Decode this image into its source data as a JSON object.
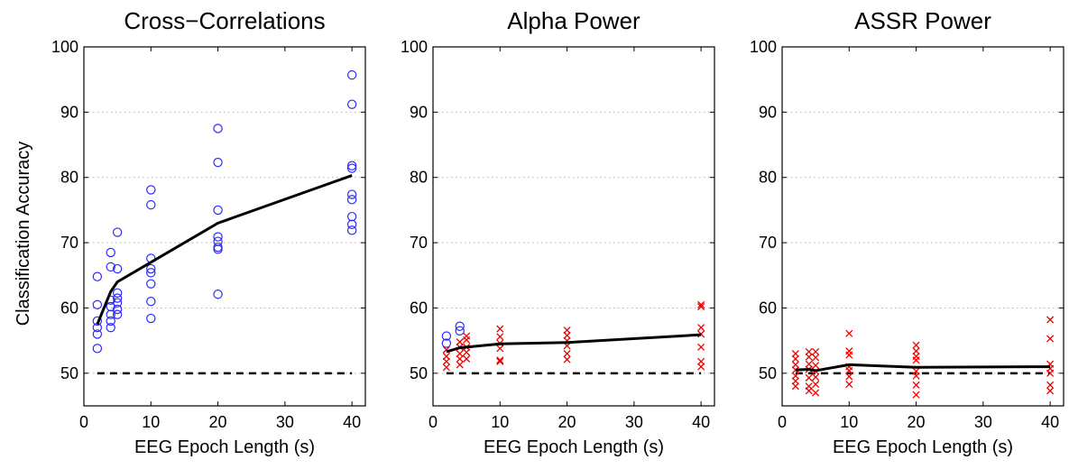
{
  "figure": {
    "ylabel": "Classification Accuracy"
  },
  "chart_data": [
    {
      "type": "scatter",
      "title": "Cross−Correlations",
      "xlabel": "EEG Epoch Length (s)",
      "ylabel": "Classification Accuracy",
      "xlim": [
        0,
        42
      ],
      "ylim": [
        45,
        100
      ],
      "xticks": [
        0,
        10,
        20,
        30,
        40
      ],
      "yticks": [
        50,
        60,
        70,
        80,
        90,
        100
      ],
      "grid": "horizontal dotted",
      "series": [
        {
          "marker": "circle",
          "color": "#2b2bff",
          "points": [
            [
              2,
              64.8
            ],
            [
              2,
              60.5
            ],
            [
              2,
              58.0
            ],
            [
              2,
              57.0
            ],
            [
              2,
              56.0
            ],
            [
              2,
              53.8
            ],
            [
              4,
              68.5
            ],
            [
              4,
              66.3
            ],
            [
              4,
              61.2
            ],
            [
              4,
              60.2
            ],
            [
              4,
              59.0
            ],
            [
              4,
              58.0
            ],
            [
              4,
              57.0
            ],
            [
              5,
              71.6
            ],
            [
              5,
              66.0
            ],
            [
              5,
              62.3
            ],
            [
              5,
              61.5
            ],
            [
              5,
              60.8
            ],
            [
              5,
              59.8
            ],
            [
              5,
              59.0
            ],
            [
              10,
              78.1
            ],
            [
              10,
              75.8
            ],
            [
              10,
              67.6
            ],
            [
              10,
              66.0
            ],
            [
              10,
              65.4
            ],
            [
              10,
              63.7
            ],
            [
              10,
              61.0
            ],
            [
              10,
              58.4
            ],
            [
              20,
              87.5
            ],
            [
              20,
              82.3
            ],
            [
              20,
              75.0
            ],
            [
              20,
              70.9
            ],
            [
              20,
              70.2
            ],
            [
              20,
              69.3
            ],
            [
              20,
              69.0
            ],
            [
              20,
              62.1
            ],
            [
              40,
              95.7
            ],
            [
              40,
              91.2
            ],
            [
              40,
              81.8
            ],
            [
              40,
              81.4
            ],
            [
              40,
              77.4
            ],
            [
              40,
              76.6
            ],
            [
              40,
              74.0
            ],
            [
              40,
              72.8
            ],
            [
              40,
              71.9
            ]
          ]
        }
      ],
      "mean_line": [
        [
          2,
          57.5
        ],
        [
          4,
          62.5
        ],
        [
          5,
          64.0
        ],
        [
          10,
          67.0
        ],
        [
          20,
          73.0
        ],
        [
          40,
          80.3
        ]
      ],
      "chance_level": 50
    },
    {
      "type": "scatter",
      "title": "Alpha Power",
      "xlabel": "EEG Epoch Length (s)",
      "xlim": [
        0,
        42
      ],
      "ylim": [
        45,
        100
      ],
      "xticks": [
        0,
        10,
        20,
        30,
        40
      ],
      "yticks": [
        50,
        60,
        70,
        80,
        90,
        100
      ],
      "grid": "horizontal dotted",
      "series": [
        {
          "marker": "circle",
          "color": "#2b2bff",
          "points": [
            [
              2,
              55.7
            ],
            [
              2,
              54.6
            ],
            [
              4,
              57.2
            ],
            [
              4,
              56.5
            ]
          ]
        },
        {
          "marker": "cross",
          "color": "#ee0000",
          "points": [
            [
              2,
              53.6
            ],
            [
              2,
              52.6
            ],
            [
              2,
              51.8
            ],
            [
              2,
              50.9
            ],
            [
              4,
              54.8
            ],
            [
              4,
              54.0
            ],
            [
              4,
              53.0
            ],
            [
              4,
              52.2
            ],
            [
              4,
              51.3
            ],
            [
              5,
              55.7
            ],
            [
              5,
              55.1
            ],
            [
              5,
              54.0
            ],
            [
              5,
              53.2
            ],
            [
              5,
              52.2
            ],
            [
              10,
              56.8
            ],
            [
              10,
              55.6
            ],
            [
              10,
              54.6
            ],
            [
              10,
              53.8
            ],
            [
              10,
              52.0
            ],
            [
              10,
              51.8
            ],
            [
              20,
              56.6
            ],
            [
              20,
              55.8
            ],
            [
              20,
              55.0
            ],
            [
              20,
              54.2
            ],
            [
              20,
              53.0
            ],
            [
              20,
              52.1
            ],
            [
              40,
              60.5
            ],
            [
              40,
              60.2
            ],
            [
              40,
              57.0
            ],
            [
              40,
              56.0
            ],
            [
              40,
              54.0
            ],
            [
              40,
              51.8
            ],
            [
              40,
              51.0
            ]
          ]
        }
      ],
      "mean_line": [
        [
          2,
          53.3
        ],
        [
          4,
          53.9
        ],
        [
          5,
          54.0
        ],
        [
          10,
          54.5
        ],
        [
          20,
          54.7
        ],
        [
          40,
          55.9
        ]
      ],
      "chance_level": 50
    },
    {
      "type": "scatter",
      "title": "ASSR Power",
      "xlabel": "EEG Epoch Length (s)",
      "xlim": [
        0,
        42
      ],
      "ylim": [
        45,
        100
      ],
      "xticks": [
        0,
        10,
        20,
        30,
        40
      ],
      "yticks": [
        50,
        60,
        70,
        80,
        90,
        100
      ],
      "grid": "horizontal dotted",
      "series": [
        {
          "marker": "cross",
          "color": "#ee0000",
          "points": [
            [
              2,
              53.0
            ],
            [
              2,
              52.2
            ],
            [
              2,
              51.3
            ],
            [
              2,
              50.5
            ],
            [
              2,
              49.6
            ],
            [
              2,
              48.8
            ],
            [
              2,
              48.0
            ],
            [
              4,
              53.3
            ],
            [
              4,
              52.5
            ],
            [
              4,
              51.4
            ],
            [
              4,
              50.6
            ],
            [
              4,
              49.3
            ],
            [
              4,
              48.0
            ],
            [
              4,
              47.3
            ],
            [
              5,
              53.3
            ],
            [
              5,
              52.4
            ],
            [
              5,
              51.2
            ],
            [
              5,
              50.3
            ],
            [
              5,
              49.4
            ],
            [
              5,
              48.3
            ],
            [
              5,
              47.0
            ],
            [
              10,
              56.1
            ],
            [
              10,
              53.4
            ],
            [
              10,
              52.8
            ],
            [
              10,
              51.0
            ],
            [
              10,
              50.4
            ],
            [
              10,
              49.5
            ],
            [
              10,
              48.3
            ],
            [
              20,
              54.3
            ],
            [
              20,
              53.4
            ],
            [
              20,
              52.6
            ],
            [
              20,
              52.0
            ],
            [
              20,
              50.3
            ],
            [
              20,
              49.6
            ],
            [
              20,
              48.2
            ],
            [
              20,
              46.7
            ],
            [
              40,
              58.2
            ],
            [
              40,
              55.3
            ],
            [
              40,
              51.4
            ],
            [
              40,
              50.7
            ],
            [
              40,
              50.0
            ],
            [
              40,
              48.2
            ],
            [
              40,
              47.3
            ]
          ]
        }
      ],
      "mean_line": [
        [
          2,
          50.5
        ],
        [
          4,
          50.6
        ],
        [
          5,
          50.4
        ],
        [
          10,
          51.3
        ],
        [
          20,
          50.9
        ],
        [
          40,
          51.0
        ]
      ],
      "chance_level": 50
    }
  ]
}
